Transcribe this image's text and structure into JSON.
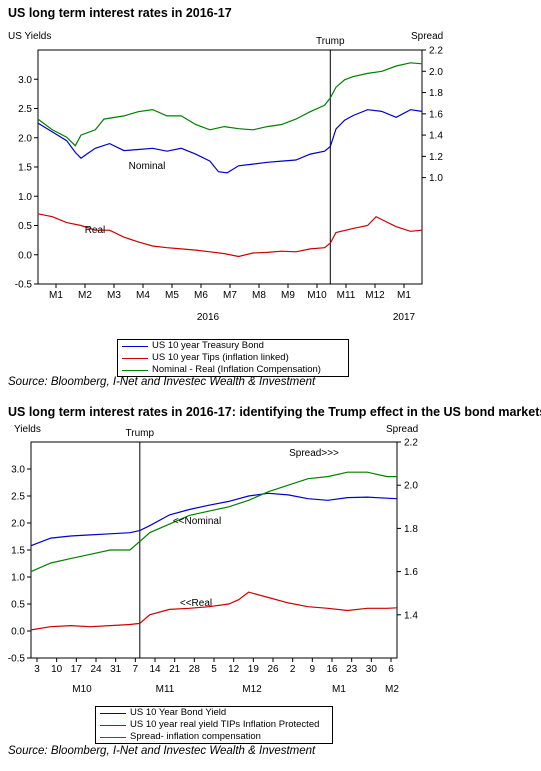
{
  "chart1": {
    "title": "US long term interest rates in 2016-17",
    "left_axis_label": "US Yields",
    "right_axis_label": "Spread",
    "event_label": "Trump",
    "series_labels": {
      "nominal": "Nominal",
      "real": "Real"
    },
    "legend": [
      {
        "label": "US 10 year Treasury Bond",
        "color": "#0000cc"
      },
      {
        "label": "US 10 year Tips (inflation linked)",
        "color": "#cc0000"
      },
      {
        "label": "Nominal - Real (Inflation Compensation)",
        "color": "#008000"
      }
    ],
    "source": "Source: Bloomberg, I-Net and Investec Wealth & Investment",
    "colors": {
      "nominal": "#0000cc",
      "real": "#cc0000",
      "spread": "#008000"
    }
  },
  "chart2": {
    "title": "US long term interest rates in 2016-17: identifying the Trump effect in the US bond markets",
    "left_axis_label": "Yields",
    "right_axis_label": "Spread",
    "event_label": "Trump",
    "series_labels": {
      "nominal": "<<Nominal",
      "real": "<<Real",
      "spread": "Spread>>>"
    },
    "legend": [
      {
        "label": "US 10 Year Bond Yield",
        "color": "#0000cc"
      },
      {
        "label": "US 10 year real yield  TIPs Inflation Protected",
        "color": "#cc0000"
      },
      {
        "label": "Spread- inflation compensation",
        "color": "#008000"
      }
    ],
    "source": "Source: Bloomberg, I-Net and Investec Wealth & Investment",
    "colors": {
      "nominal": "#0000cc",
      "real": "#cc0000",
      "spread": "#008000"
    }
  },
  "chart_data": [
    {
      "type": "line",
      "title": "US long term interest rates in 2016-17",
      "ylabel": "US Yields",
      "y2label": "Spread",
      "ylim": [
        -0.5,
        3.5
      ],
      "y2lim": [
        0.0,
        2.2
      ],
      "yticks": [
        "-0.5",
        "0.0",
        "0.5",
        "1.0",
        "1.5",
        "2.0",
        "2.5",
        "3.0"
      ],
      "y2ticks": [
        "1.0",
        "1.2",
        "1.4",
        "1.6",
        "1.8",
        "2.0",
        "2.2"
      ],
      "x_tick_labels": [
        "M1",
        "M2",
        "M3",
        "M4",
        "M5",
        "M6",
        "M7",
        "M8",
        "M9",
        "M10",
        "M11",
        "M12",
        "M1"
      ],
      "x_year_labels": [
        "2016",
        "2017"
      ],
      "event": {
        "label": "Trump",
        "x": 10.2
      },
      "x_range": [
        0,
        13.4
      ],
      "grid": false,
      "series": [
        {
          "name": "US 10 year Treasury Bond",
          "axis": "left",
          "points": [
            [
              0,
              2.25
            ],
            [
              0.5,
              2.1
            ],
            [
              1,
              1.95
            ],
            [
              1.3,
              1.75
            ],
            [
              1.5,
              1.65
            ],
            [
              1.7,
              1.72
            ],
            [
              2,
              1.82
            ],
            [
              2.5,
              1.9
            ],
            [
              3,
              1.78
            ],
            [
              3.5,
              1.8
            ],
            [
              4,
              1.82
            ],
            [
              4.5,
              1.77
            ],
            [
              5,
              1.82
            ],
            [
              5.5,
              1.72
            ],
            [
              6,
              1.6
            ],
            [
              6.3,
              1.42
            ],
            [
              6.6,
              1.4
            ],
            [
              7,
              1.52
            ],
            [
              7.5,
              1.55
            ],
            [
              8,
              1.58
            ],
            [
              8.5,
              1.6
            ],
            [
              9,
              1.62
            ],
            [
              9.5,
              1.72
            ],
            [
              10,
              1.77
            ],
            [
              10.2,
              1.85
            ],
            [
              10.4,
              2.15
            ],
            [
              10.7,
              2.3
            ],
            [
              11,
              2.38
            ],
            [
              11.5,
              2.48
            ],
            [
              12,
              2.45
            ],
            [
              12.5,
              2.35
            ],
            [
              13,
              2.48
            ],
            [
              13.4,
              2.45
            ]
          ]
        },
        {
          "name": "US 10 year Tips (inflation linked)",
          "axis": "left",
          "points": [
            [
              0,
              0.7
            ],
            [
              0.5,
              0.65
            ],
            [
              1,
              0.55
            ],
            [
              1.5,
              0.5
            ],
            [
              2,
              0.42
            ],
            [
              2.5,
              0.42
            ],
            [
              3,
              0.3
            ],
            [
              3.5,
              0.22
            ],
            [
              4,
              0.15
            ],
            [
              4.5,
              0.12
            ],
            [
              5,
              0.1
            ],
            [
              5.5,
              0.08
            ],
            [
              6,
              0.05
            ],
            [
              6.5,
              0.02
            ],
            [
              7,
              -0.03
            ],
            [
              7.5,
              0.03
            ],
            [
              8,
              0.04
            ],
            [
              8.5,
              0.06
            ],
            [
              9,
              0.05
            ],
            [
              9.5,
              0.1
            ],
            [
              10,
              0.12
            ],
            [
              10.2,
              0.2
            ],
            [
              10.4,
              0.38
            ],
            [
              11,
              0.45
            ],
            [
              11.5,
              0.5
            ],
            [
              11.8,
              0.65
            ],
            [
              12,
              0.6
            ],
            [
              12.5,
              0.48
            ],
            [
              13,
              0.4
            ],
            [
              13.4,
              0.42
            ]
          ]
        },
        {
          "name": "Nominal - Real (Inflation Compensation)",
          "axis": "right",
          "points": [
            [
              0,
              1.55
            ],
            [
              0.5,
              1.45
            ],
            [
              1,
              1.38
            ],
            [
              1.3,
              1.3
            ],
            [
              1.5,
              1.4
            ],
            [
              2,
              1.45
            ],
            [
              2.3,
              1.55
            ],
            [
              3,
              1.58
            ],
            [
              3.5,
              1.62
            ],
            [
              4,
              1.64
            ],
            [
              4.5,
              1.58
            ],
            [
              5,
              1.58
            ],
            [
              5.5,
              1.5
            ],
            [
              6,
              1.45
            ],
            [
              6.5,
              1.48
            ],
            [
              7,
              1.46
            ],
            [
              7.5,
              1.45
            ],
            [
              8,
              1.48
            ],
            [
              8.5,
              1.5
            ],
            [
              9,
              1.55
            ],
            [
              9.5,
              1.62
            ],
            [
              10,
              1.68
            ],
            [
              10.2,
              1.75
            ],
            [
              10.4,
              1.85
            ],
            [
              10.7,
              1.92
            ],
            [
              11,
              1.95
            ],
            [
              11.5,
              1.98
            ],
            [
              12,
              2.0
            ],
            [
              12.5,
              2.05
            ],
            [
              13,
              2.08
            ],
            [
              13.4,
              2.07
            ]
          ]
        }
      ]
    },
    {
      "type": "line",
      "title": "US long term interest rates in 2016-17: identifying the Trump effect in the US bond markets",
      "ylabel": "Yields",
      "y2label": "Spread",
      "ylim": [
        -0.5,
        3.5
      ],
      "y2lim": [
        1.2,
        2.2
      ],
      "yticks": [
        "-0.5",
        "0.0",
        "0.5",
        "1.0",
        "1.5",
        "2.0",
        "2.5",
        "3.0"
      ],
      "y2ticks": [
        "1.4",
        "1.6",
        "1.8",
        "2.0",
        "2.2"
      ],
      "x_tick_labels": [
        "3",
        "10",
        "17",
        "24",
        "31",
        "7",
        "14",
        "21",
        "28",
        "5",
        "12",
        "19",
        "26",
        "2",
        "9",
        "16",
        "23",
        "30",
        "6"
      ],
      "x_month_labels": [
        "M10",
        "M11",
        "M12",
        "M1",
        "M2"
      ],
      "event": {
        "label": "Trump",
        "x": 5.5
      },
      "x_range": [
        0,
        18.5
      ],
      "grid": false,
      "series": [
        {
          "name": "US 10 Year Bond Yield",
          "axis": "left",
          "points": [
            [
              0,
              1.58
            ],
            [
              1,
              1.72
            ],
            [
              2,
              1.76
            ],
            [
              3,
              1.78
            ],
            [
              4,
              1.8
            ],
            [
              5,
              1.82
            ],
            [
              5.5,
              1.86
            ],
            [
              6,
              1.95
            ],
            [
              7,
              2.15
            ],
            [
              8,
              2.25
            ],
            [
              9,
              2.33
            ],
            [
              10,
              2.4
            ],
            [
              11,
              2.5
            ],
            [
              12,
              2.55
            ],
            [
              13,
              2.52
            ],
            [
              14,
              2.45
            ],
            [
              15,
              2.42
            ],
            [
              16,
              2.47
            ],
            [
              17,
              2.48
            ],
            [
              18,
              2.46
            ],
            [
              18.5,
              2.45
            ]
          ]
        },
        {
          "name": "US 10 year real yield  TIPs Inflation Protected",
          "axis": "left",
          "points": [
            [
              0,
              0.02
            ],
            [
              1,
              0.08
            ],
            [
              2,
              0.1
            ],
            [
              3,
              0.08
            ],
            [
              4,
              0.1
            ],
            [
              5,
              0.12
            ],
            [
              5.5,
              0.14
            ],
            [
              6,
              0.3
            ],
            [
              7,
              0.4
            ],
            [
              8,
              0.42
            ],
            [
              9,
              0.45
            ],
            [
              10,
              0.5
            ],
            [
              10.5,
              0.58
            ],
            [
              11,
              0.72
            ],
            [
              12,
              0.62
            ],
            [
              13,
              0.52
            ],
            [
              14,
              0.45
            ],
            [
              15,
              0.42
            ],
            [
              16,
              0.38
            ],
            [
              17,
              0.42
            ],
            [
              18,
              0.42
            ],
            [
              18.5,
              0.43
            ]
          ]
        },
        {
          "name": "Spread- inflation compensation",
          "axis": "right",
          "points": [
            [
              0,
              1.6
            ],
            [
              1,
              1.64
            ],
            [
              2,
              1.66
            ],
            [
              3,
              1.68
            ],
            [
              4,
              1.7
            ],
            [
              5,
              1.7
            ],
            [
              5.5,
              1.74
            ],
            [
              6,
              1.78
            ],
            [
              7,
              1.82
            ],
            [
              8,
              1.86
            ],
            [
              9,
              1.88
            ],
            [
              10,
              1.9
            ],
            [
              11,
              1.93
            ],
            [
              12,
              1.97
            ],
            [
              13,
              2.0
            ],
            [
              14,
              2.03
            ],
            [
              15,
              2.04
            ],
            [
              16,
              2.06
            ],
            [
              17,
              2.06
            ],
            [
              18,
              2.04
            ],
            [
              18.5,
              2.04
            ]
          ]
        }
      ]
    }
  ]
}
